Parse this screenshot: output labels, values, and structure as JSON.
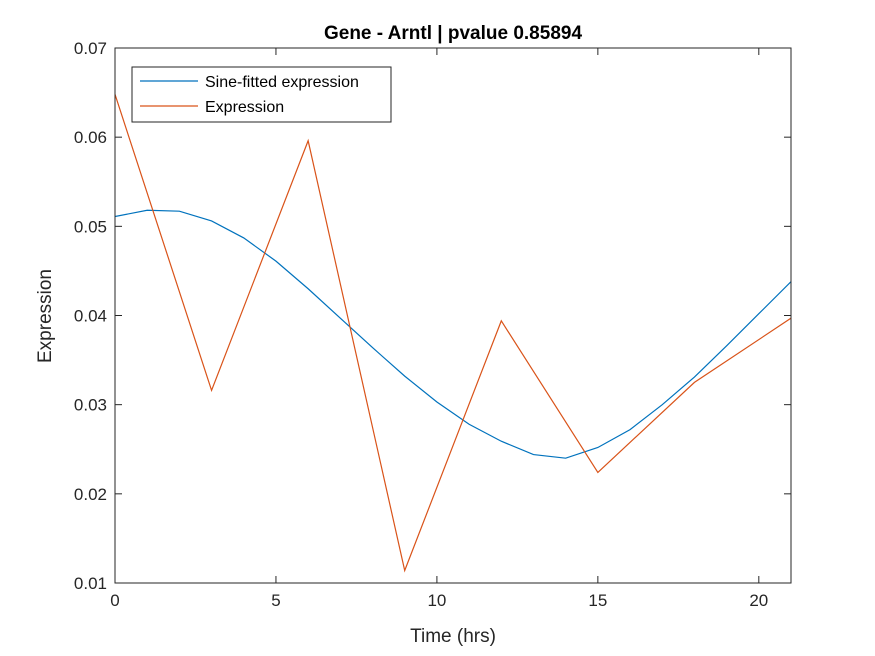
{
  "chart_data": {
    "type": "line",
    "title": "Gene - Arntl | pvalue 0.85894",
    "xlabel": "Time (hrs)",
    "ylabel": "Expression",
    "xlim": [
      0,
      21
    ],
    "ylim": [
      0.01,
      0.07
    ],
    "xticks": [
      0,
      5,
      10,
      15,
      20
    ],
    "yticks": [
      0.01,
      0.02,
      0.03,
      0.04,
      0.05,
      0.06,
      0.07
    ],
    "xtick_labels": [
      "0",
      "5",
      "10",
      "15",
      "20"
    ],
    "ytick_labels": [
      "0.01",
      "0.02",
      "0.03",
      "0.04",
      "0.05",
      "0.06",
      "0.07"
    ],
    "grid": false,
    "legend_position": "top-left",
    "series": [
      {
        "name": "Sine-fitted expression",
        "color": "#0072BD",
        "x": [
          0,
          1,
          2,
          3,
          4,
          5,
          6,
          7,
          8,
          9,
          10,
          11,
          12,
          13,
          14,
          15,
          16,
          17,
          18,
          19,
          20,
          21
        ],
        "y": [
          0.0511,
          0.0518,
          0.0517,
          0.0506,
          0.0487,
          0.0461,
          0.043,
          0.0397,
          0.0364,
          0.0332,
          0.0303,
          0.0278,
          0.0259,
          0.0244,
          0.024,
          0.0252,
          0.0272,
          0.03,
          0.0331,
          0.0366,
          0.0402,
          0.0438
        ]
      },
      {
        "name": "Expression",
        "color": "#D95319",
        "x": [
          0,
          3,
          6,
          9,
          12,
          15,
          18,
          21
        ],
        "y": [
          0.0648,
          0.0316,
          0.0596,
          0.0114,
          0.0394,
          0.0224,
          0.0325,
          0.0397
        ]
      }
    ]
  }
}
